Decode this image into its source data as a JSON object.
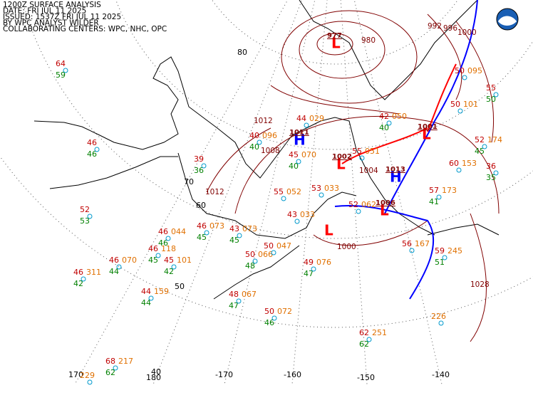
{
  "header": {
    "lines": [
      "1200Z SURFACE ANALYSIS",
      "DATE: FRI JUL 11 2025",
      "ISSUED: 1537Z FRI JUL 11 2025",
      "BY WPC ANALYST WILDER",
      "COLLABORATING CENTERS: WPC, NHC, OPC"
    ]
  },
  "graticule": {
    "latitude_labels": [
      "80",
      "70",
      "60",
      "50",
      "40"
    ],
    "longitude_labels": [
      "170",
      "180",
      "-170",
      "-160",
      "-150",
      "-140"
    ]
  },
  "pressure_centers": [
    {
      "symbol": "L",
      "value": "977"
    },
    {
      "symbol": "H",
      "value": "1011"
    },
    {
      "symbol": "L",
      "value": "1002"
    },
    {
      "symbol": "H",
      "value": "1013"
    },
    {
      "symbol": "L",
      "value": "1006"
    },
    {
      "symbol": "L",
      "value": "1001"
    },
    {
      "symbol": "L",
      "value": ""
    }
  ],
  "isobar_labels": [
    "1012",
    "1008",
    "1012",
    "1004",
    "1000",
    "1028",
    "980",
    "992",
    "996",
    "1000"
  ],
  "stations": [
    {
      "temp": "64",
      "dew": "59"
    },
    {
      "temp": "46",
      "dew": "46"
    },
    {
      "temp": "52",
      "dew": "53"
    },
    {
      "temp": "46",
      "pressure": "044",
      "dew": "46"
    },
    {
      "temp": "46",
      "pressure": "118",
      "dew": "45"
    },
    {
      "temp": "46",
      "pressure": "070",
      "dew": "44"
    },
    {
      "temp": "45",
      "pressure": "101",
      "dew": "42"
    },
    {
      "temp": "46",
      "pressure": "311",
      "dew": "42"
    },
    {
      "temp": "44",
      "pressure": "159",
      "dew": "44"
    },
    {
      "temp": "68",
      "pressure": "217",
      "dew": "62"
    },
    {
      "pressure": "229"
    },
    {
      "temp": "46",
      "pressure": "073",
      "dew": "45"
    },
    {
      "temp": "43",
      "pressure": "073",
      "dew": "45"
    },
    {
      "temp": "50",
      "pressure": "066",
      "dew": "48"
    },
    {
      "temp": "50",
      "pressure": "047"
    },
    {
      "temp": "48",
      "pressure": "067",
      "dew": "47"
    },
    {
      "temp": "50",
      "pressure": "072",
      "dew": "46"
    },
    {
      "temp": "49",
      "pressure": "076",
      "dew": "47"
    },
    {
      "temp": "62",
      "pressure": "251",
      "dew": "62"
    },
    {
      "pressure": "226"
    },
    {
      "temp": "56",
      "pressure": "167"
    },
    {
      "temp": "59",
      "pressure": "245",
      "dew": "51"
    },
    {
      "temp": "39",
      "dew": "36"
    },
    {
      "temp": "40",
      "pressure": "096",
      "dew": "40"
    },
    {
      "temp": "44",
      "pressure": "029"
    },
    {
      "temp": "45",
      "pressure": "070",
      "dew": "40"
    },
    {
      "temp": "55",
      "pressure": "052"
    },
    {
      "temp": "53",
      "pressure": "033"
    },
    {
      "temp": "43",
      "pressure": "033"
    },
    {
      "temp": "52",
      "pressure": "062"
    },
    {
      "temp": "55",
      "pressure": "051"
    },
    {
      "temp": "42",
      "pressure": "050",
      "dew": "40"
    },
    {
      "temp": "50",
      "pressure": "095"
    },
    {
      "temp": "50",
      "pressure": "101"
    },
    {
      "temp": "52",
      "pressure": "174",
      "dew": "45"
    },
    {
      "temp": "57",
      "pressure": "173",
      "dew": "41"
    },
    {
      "temp": "60",
      "pressure": "153"
    },
    {
      "temp": "55",
      "dew": "50"
    },
    {
      "temp": "36",
      "dew": "35"
    }
  ]
}
